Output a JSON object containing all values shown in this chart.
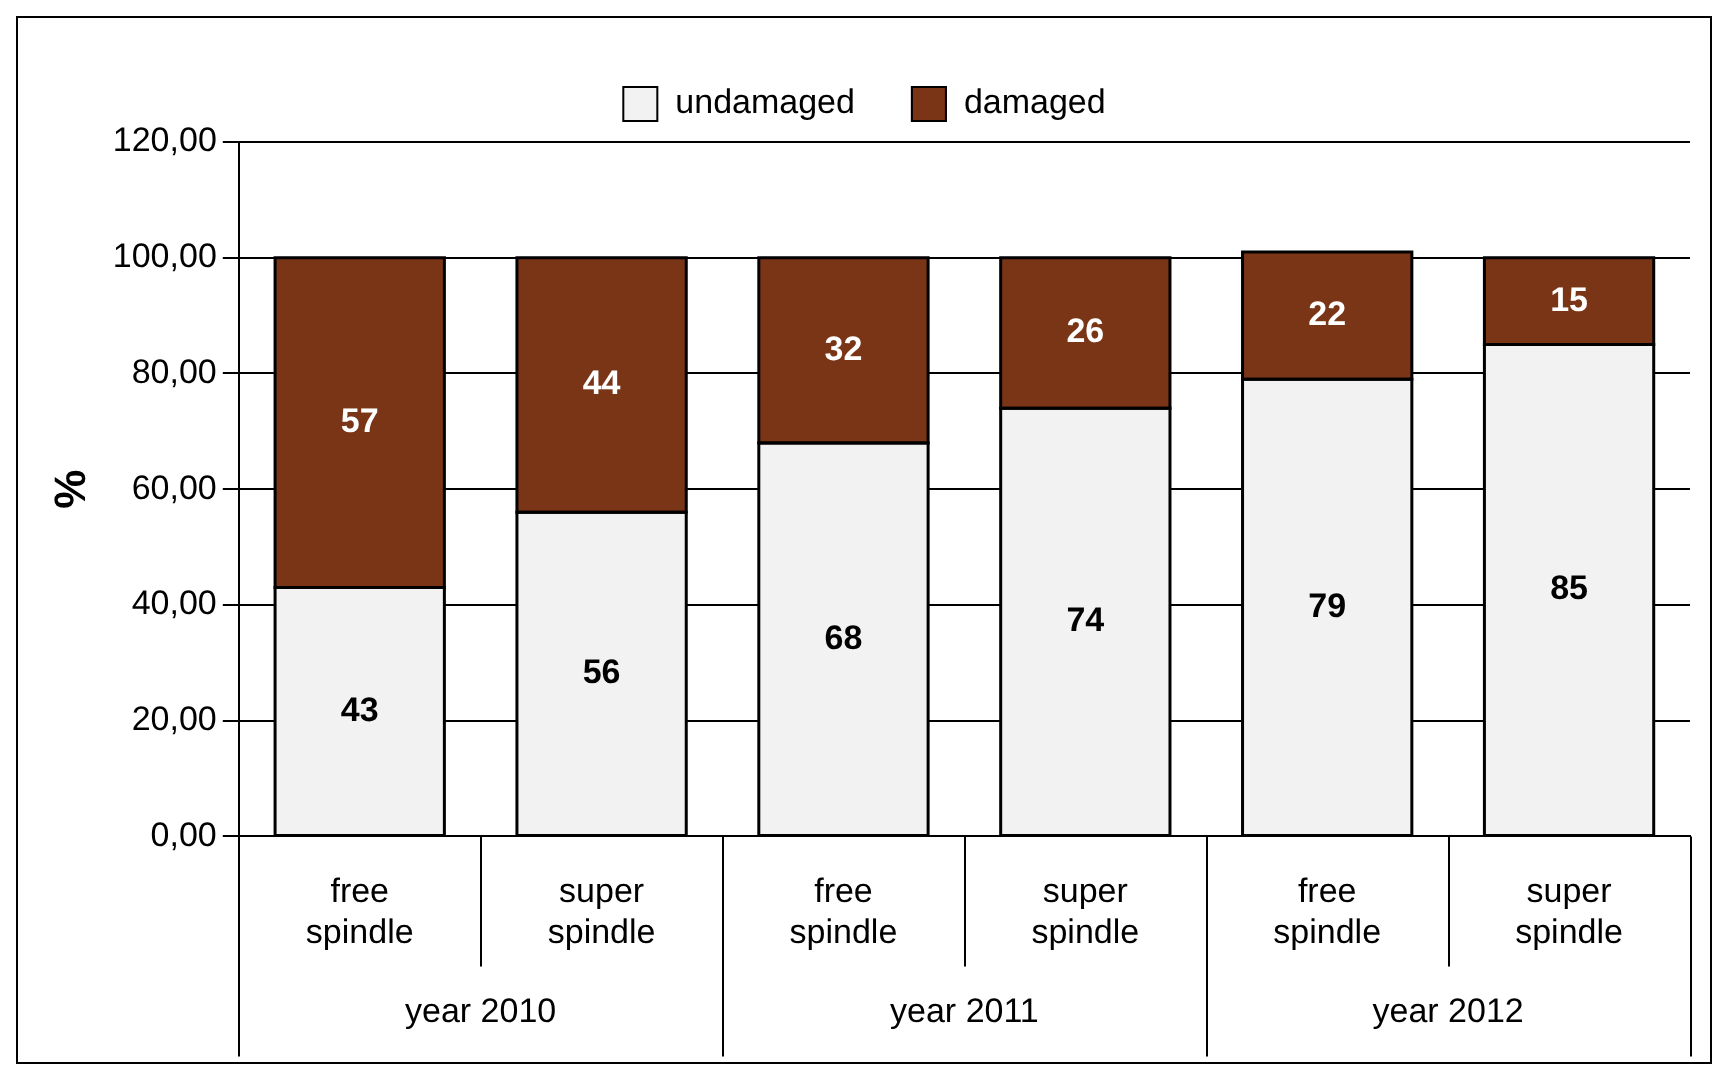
{
  "chart_data": {
    "type": "bar",
    "stacked": true,
    "ylabel": "%",
    "categories": [
      "free spindle",
      "super spindle",
      "free spindle",
      "super spindle",
      "free spindle",
      "super spindle"
    ],
    "annotations": [
      "year 2010",
      "year 2011",
      "year 2012"
    ],
    "series": [
      {
        "name": "undamaged",
        "color": "#f2f2f2",
        "values": [
          43,
          56,
          68,
          74,
          79,
          85
        ]
      },
      {
        "name": "damaged",
        "color": "#7a3416",
        "values": [
          57,
          44,
          32,
          26,
          22,
          15
        ]
      }
    ],
    "ylim": [
      0,
      120
    ],
    "yticks": [
      {
        "value": 0,
        "label": "0,00"
      },
      {
        "value": 20,
        "label": "20,00"
      },
      {
        "value": 40,
        "label": "40,00"
      },
      {
        "value": 60,
        "label": "60,00"
      },
      {
        "value": 80,
        "label": "80,00"
      },
      {
        "value": 100,
        "label": "100,00"
      },
      {
        "value": 120,
        "label": "120,00"
      }
    ],
    "grid": "y",
    "legend": "top",
    "data_labels": true
  }
}
